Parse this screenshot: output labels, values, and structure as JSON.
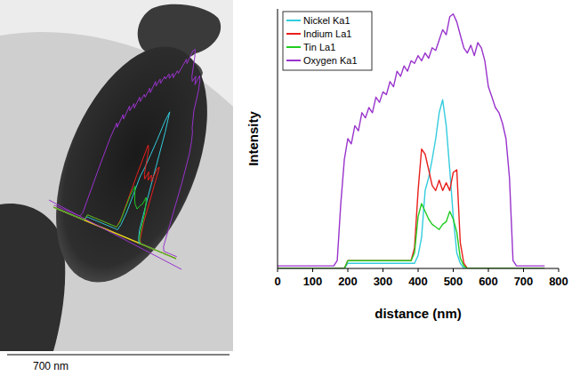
{
  "chart_data": {
    "type": "line",
    "x_label": "distance (nm)",
    "y_label": "Intensity",
    "x": [
      0,
      10,
      20,
      30,
      40,
      50,
      60,
      70,
      80,
      90,
      100,
      110,
      120,
      130,
      140,
      150,
      160,
      170,
      180,
      190,
      200,
      210,
      220,
      230,
      240,
      250,
      260,
      270,
      280,
      290,
      300,
      310,
      320,
      330,
      340,
      350,
      360,
      370,
      380,
      390,
      400,
      410,
      420,
      430,
      440,
      450,
      460,
      470,
      480,
      490,
      500,
      510,
      520,
      530,
      540,
      550,
      560,
      570,
      580,
      590,
      600,
      610,
      620,
      630,
      640,
      650,
      660,
      670,
      680,
      690,
      700,
      710,
      720,
      730,
      740,
      750,
      760
    ],
    "series": [
      {
        "name": "Nickel Ka1",
        "color": "#33ccdd",
        "values": [
          0,
          0,
          0,
          0,
          0,
          0,
          0,
          0,
          0,
          0,
          0,
          0,
          0,
          0,
          0,
          0,
          0,
          0,
          0,
          0,
          2,
          2,
          2,
          2,
          2,
          2,
          2,
          2,
          2,
          2,
          2,
          2,
          2,
          2,
          2,
          2,
          2,
          2,
          2,
          2,
          5,
          12,
          30,
          35,
          42,
          50,
          60,
          65,
          55,
          38,
          20,
          6,
          2,
          0,
          0,
          0,
          0,
          0,
          0,
          0,
          0,
          0,
          0,
          0,
          0,
          0,
          0,
          0,
          0,
          0,
          0,
          0,
          0,
          0,
          0,
          0,
          0
        ]
      },
      {
        "name": "Indium La1",
        "color": "#e8201c",
        "values": [
          0,
          0,
          0,
          0,
          0,
          0,
          0,
          0,
          0,
          0,
          0,
          0,
          0,
          0,
          0,
          0,
          0,
          0,
          0,
          0,
          3,
          3,
          3,
          3,
          3,
          3,
          3,
          3,
          3,
          3,
          3,
          3,
          3,
          3,
          3,
          3,
          3,
          3,
          3,
          8,
          30,
          46,
          44,
          38,
          32,
          30,
          34,
          30,
          33,
          30,
          37,
          38,
          10,
          2,
          0,
          0,
          0,
          0,
          0,
          0,
          0,
          0,
          0,
          0,
          0,
          0,
          0,
          0,
          0,
          0,
          0,
          0,
          0,
          0,
          0,
          0,
          0
        ]
      },
      {
        "name": "Tin La1",
        "color": "#22cc22",
        "values": [
          0,
          0,
          0,
          0,
          0,
          0,
          0,
          0,
          0,
          0,
          0,
          0,
          0,
          0,
          0,
          0,
          0,
          0,
          0,
          0,
          3,
          3,
          3,
          3,
          3,
          3,
          3,
          3,
          3,
          3,
          3,
          3,
          3,
          3,
          3,
          3,
          3,
          3,
          3,
          6,
          20,
          25,
          22,
          19,
          17,
          16,
          15,
          17,
          18,
          22,
          19,
          14,
          4,
          1,
          0,
          0,
          0,
          0,
          0,
          0,
          0,
          0,
          0,
          0,
          0,
          0,
          0,
          0,
          0,
          0,
          0,
          0,
          0,
          0,
          0,
          0,
          0
        ]
      },
      {
        "name": "Oxygen Ka1",
        "color": "#9933cc",
        "values": [
          1,
          1,
          1,
          1,
          1,
          1,
          1,
          1,
          1,
          1,
          1,
          1,
          1,
          1,
          1,
          1,
          1,
          3,
          25,
          42,
          50,
          48,
          55,
          53,
          60,
          58,
          62,
          60,
          66,
          64,
          68,
          67,
          72,
          70,
          76,
          74,
          78,
          76,
          80,
          79,
          82,
          80,
          83,
          81,
          85,
          84,
          88,
          92,
          90,
          97,
          98,
          95,
          90,
          85,
          83,
          86,
          82,
          87,
          85,
          80,
          70,
          66,
          62,
          60,
          56,
          50,
          35,
          3,
          1,
          1,
          1,
          1,
          1,
          1,
          1,
          1,
          1
        ]
      }
    ],
    "xlim": [
      0,
      800
    ],
    "xticks": [
      0,
      100,
      200,
      300,
      400,
      500,
      600,
      700,
      800
    ],
    "ylim": [
      0,
      100
    ],
    "yticks": [],
    "tick_labels": "x",
    "legend": "upper left",
    "grid": false
  },
  "micrograph": {
    "scale_bar": "700 nm"
  }
}
